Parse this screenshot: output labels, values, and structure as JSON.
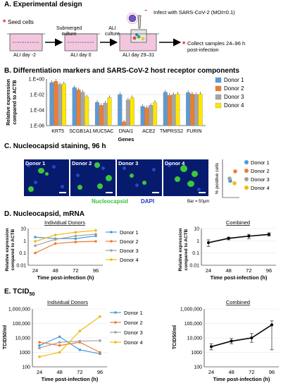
{
  "panel_a": {
    "title": "A. Experimental design",
    "seed_cells": "Seed cells",
    "submerged": [
      "Submerged",
      "culture"
    ],
    "ali_culture": [
      "ALI",
      "culture"
    ],
    "infect": "Infect with SARS-CoV-2 (MOI=0.1)",
    "day_labels": [
      "ALI day -2",
      "ALI day 0",
      "ALI day 29–31"
    ],
    "collect": [
      "Collect samples 24–96 h",
      "post-infection"
    ]
  },
  "panel_b": {
    "title": "B. Differentiation markers and SARS-CoV-2 host receptor components",
    "colors": [
      "#5b9bd5",
      "#ed7d31",
      "#a5a5a5",
      "#ffe600"
    ],
    "chart_data": {
      "type": "bar",
      "categories": [
        "KRT5",
        "SCGB1A1",
        "MUC5AC",
        "DNAI1",
        "ACE2",
        "TMPRSS2",
        "FURIN"
      ],
      "series": [
        {
          "name": "Donor 1",
          "values": [
            0.35,
            0.08,
            0.001,
            0.01,
            0.0003,
            0.02,
            0.018
          ]
        },
        {
          "name": "Donor 2",
          "values": [
            0.5,
            0.04,
            0.0004,
            3e-06,
            0.0002,
            0.008,
            0.012
          ]
        },
        {
          "name": "Donor 3",
          "values": [
            0.2,
            0.02,
            0.0008,
            0.002,
            0.0004,
            0.01,
            0.01
          ]
        },
        {
          "name": "Donor 4",
          "values": [
            0.25,
            0.005,
            0.004,
            0.004,
            0.001,
            0.012,
            0.012
          ]
        }
      ],
      "ylabel": "Relative expression compared to ACTB",
      "xlabel": "Genes",
      "yscale": "log",
      "ylim": [
        1e-06,
        1
      ],
      "yticks": [
        "1.E+00",
        "1.E-02",
        "1.E-04",
        "1.E-06"
      ],
      "legend_position": "right"
    }
  },
  "panel_c": {
    "title": "C. Nucleocapsid staining, 96 h",
    "donors": [
      "Donor 1",
      "Donor 2",
      "Donor 3",
      "Donor 4"
    ],
    "stain_label": "Nucleocapsid",
    "dapi_label": "DAPI",
    "scale_bar": "Bar = 50μm",
    "chart_data": {
      "type": "scatter",
      "ylabel": "% positive cells",
      "series": [
        {
          "name": "Donor 1",
          "values": [
            7
          ]
        },
        {
          "name": "Donor 2",
          "values": [
            11
          ]
        },
        {
          "name": "Donor 3",
          "values": [
            8
          ]
        },
        {
          "name": "Donor 4",
          "values": [
            6
          ]
        }
      ]
    }
  },
  "panel_d": {
    "title": "D. Nucleocapsid, mRNA",
    "left_title": "Individual Donors",
    "right_title": "Combined",
    "chart_data": [
      {
        "type": "line",
        "x": [
          24,
          48,
          72,
          96
        ],
        "xlabel": "Time post-infection (h)",
        "ylabel": "Relative expression compared to ACTB",
        "yscale": "log",
        "ylim": [
          0.01,
          10
        ],
        "yticks": [
          "10",
          "1",
          "0.1",
          "0.01"
        ],
        "series": [
          {
            "name": "Donor 1",
            "values": [
              2,
              1.5,
              1.5,
              2.5
            ]
          },
          {
            "name": "Donor 2",
            "values": [
              0.1,
              0.6,
              0.8,
              0.9
            ]
          },
          {
            "name": "Donor 3",
            "values": [
              0.4,
              1.3,
              2.5,
              3.5
            ]
          },
          {
            "name": "Donor 4",
            "values": [
              0.9,
              3,
              5,
              7
            ]
          }
        ]
      },
      {
        "type": "line",
        "x": [
          24,
          48,
          72,
          96
        ],
        "xlabel": "Time post-infection (h)",
        "ylabel": "Relative expression compared to ACTB",
        "yscale": "log",
        "ylim": [
          0.01,
          10
        ],
        "yticks": [
          "10",
          "1",
          "0.1",
          "0.01"
        ],
        "series": [
          {
            "values": [
              0.7,
              1.6,
              2.4,
              3.3
            ],
            "err_low": [
              0.35,
              1.2,
              1.5,
              2.5
            ],
            "err_high": [
              1.2,
              2.0,
              3.4,
              4.5
            ]
          }
        ]
      }
    ]
  },
  "panel_e": {
    "title": "E. TCID",
    "title_sub": "50",
    "left_title": "Individual Donors",
    "right_title": "Combined",
    "chart_data": [
      {
        "type": "line",
        "x": [
          24,
          48,
          72,
          96
        ],
        "xlabel": "Time post-infection (h)",
        "ylabel": "TCID50/ml",
        "yscale": "log",
        "ylim": [
          100,
          1000000
        ],
        "yticks": [
          "1,000,000",
          "100,000",
          "10,000",
          "1000",
          "100"
        ],
        "series": [
          {
            "name": "Donor 1",
            "values": [
              3000,
              12000,
              1500,
              800
            ]
          },
          {
            "name": "Donor 2",
            "values": [
              5000,
              3000,
              5000,
              1000
            ]
          },
          {
            "name": "Donor 3",
            "values": [
              2000,
              5000,
              6000,
              6500
            ]
          },
          {
            "name": "Donor 4",
            "values": [
              500,
              1000,
              30000,
              300000
            ]
          }
        ]
      },
      {
        "type": "line",
        "x": [
          24,
          48,
          72,
          96
        ],
        "xlabel": "Time post-infection (h)",
        "ylabel": "TCID50/ml",
        "yscale": "log",
        "ylim": [
          100,
          1000000
        ],
        "yticks": [
          "1,000,000",
          "100,000",
          "10,000",
          "1000",
          "100"
        ],
        "series": [
          {
            "values": [
              2500,
              6000,
              10000,
              80000
            ],
            "err_low": [
              1500,
              4000,
              5000,
              1500
            ],
            "err_high": [
              4000,
              9000,
              20000,
              150000
            ]
          }
        ]
      }
    ]
  }
}
